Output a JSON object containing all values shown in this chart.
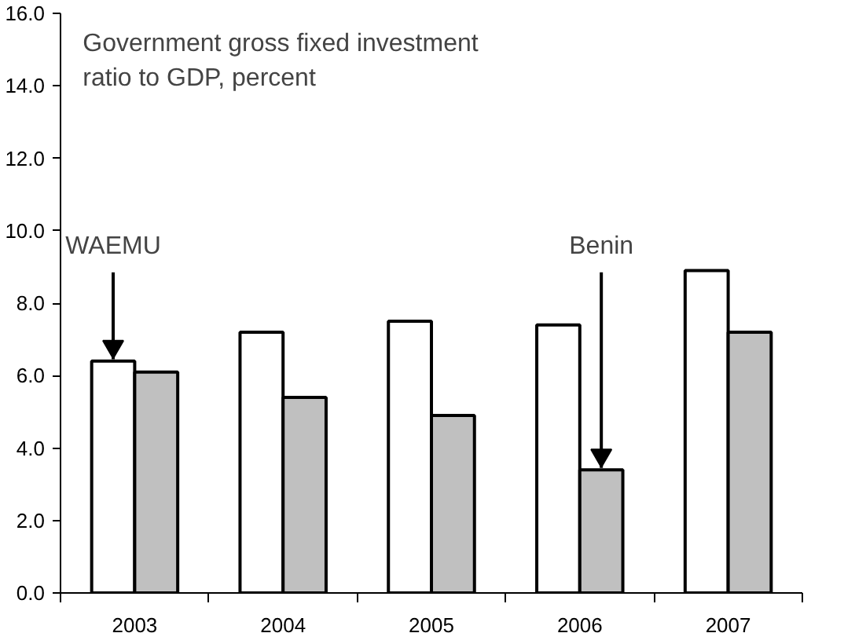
{
  "chart_data": {
    "type": "bar",
    "title": "Government gross fixed investment ratio to GDP, percent",
    "categories": [
      "2003",
      "2004",
      "2005",
      "2006",
      "2007"
    ],
    "series": [
      {
        "name": "WAEMU",
        "color": "#ffffff",
        "values": [
          6.4,
          7.2,
          7.5,
          7.4,
          8.9
        ]
      },
      {
        "name": "Benin",
        "color": "#c0c0c0",
        "values": [
          6.1,
          5.4,
          4.9,
          3.4,
          7.2
        ]
      }
    ],
    "ylim": [
      0,
      16
    ],
    "yticks": [
      {
        "value": 0,
        "label": "0.0"
      },
      {
        "value": 2,
        "label": "2.0"
      },
      {
        "value": 4,
        "label": "4.0"
      },
      {
        "value": 6,
        "label": "6.0"
      },
      {
        "value": 8,
        "label": "8.0"
      },
      {
        "value": 10,
        "label": "10.0"
      },
      {
        "value": 12,
        "label": "12.0"
      },
      {
        "value": 14,
        "label": "14.0"
      },
      {
        "value": 16,
        "label": "16.0"
      }
    ],
    "grid": false,
    "legend": false
  }
}
